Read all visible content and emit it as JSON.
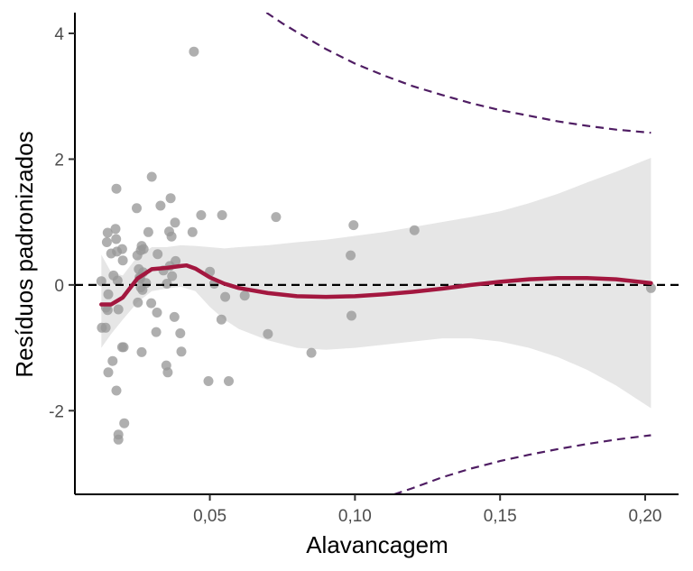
{
  "chart_data": {
    "type": "scatter",
    "xlabel": "Alavancagem",
    "ylabel": "Resíduos padronizados",
    "xlim": [
      0.0035,
      0.2115
    ],
    "ylim": [
      -3.33,
      4.33
    ],
    "xticks": [
      {
        "value": 0.05,
        "label": "0,05"
      },
      {
        "value": 0.1,
        "label": "0,10"
      },
      {
        "value": 0.15,
        "label": "0,15"
      },
      {
        "value": 0.2,
        "label": "0,20"
      }
    ],
    "yticks": [
      {
        "value": -2,
        "label": "-2"
      },
      {
        "value": 0,
        "label": "0"
      },
      {
        "value": 2,
        "label": "2"
      },
      {
        "value": 4,
        "label": "4"
      }
    ],
    "grid": false,
    "colors": {
      "points": "#999999",
      "smooth": "#a3173f",
      "band": "#e6e6e6",
      "reference": "#000000",
      "cook": "#4f1d63",
      "axis": "#000000"
    },
    "points": [
      {
        "x": 0.0126,
        "y": 0.06
      },
      {
        "x": 0.0128,
        "y": -0.68
      },
      {
        "x": 0.0141,
        "y": -0.68
      },
      {
        "x": 0.0142,
        "y": -0.36
      },
      {
        "x": 0.0145,
        "y": 0.68
      },
      {
        "x": 0.0148,
        "y": 0.83
      },
      {
        "x": 0.0148,
        "y": -0.4
      },
      {
        "x": 0.015,
        "y": -0.15
      },
      {
        "x": 0.015,
        "y": -1.39
      },
      {
        "x": 0.016,
        "y": 0.5
      },
      {
        "x": 0.0165,
        "y": -1.21
      },
      {
        "x": 0.0168,
        "y": 0.15
      },
      {
        "x": 0.0175,
        "y": 0.89
      },
      {
        "x": 0.0177,
        "y": 0.73
      },
      {
        "x": 0.0178,
        "y": 1.53
      },
      {
        "x": 0.0178,
        "y": -1.68
      },
      {
        "x": 0.018,
        "y": 0.53
      },
      {
        "x": 0.0182,
        "y": 0.07
      },
      {
        "x": 0.0185,
        "y": -0.39
      },
      {
        "x": 0.0185,
        "y": -2.38
      },
      {
        "x": 0.0185,
        "y": -2.46
      },
      {
        "x": 0.0198,
        "y": 0.57
      },
      {
        "x": 0.0198,
        "y": -0.99
      },
      {
        "x": 0.02,
        "y": 0.39
      },
      {
        "x": 0.0203,
        "y": -0.99
      },
      {
        "x": 0.0205,
        "y": -2.2
      },
      {
        "x": 0.0248,
        "y": 1.22
      },
      {
        "x": 0.025,
        "y": 0.47
      },
      {
        "x": 0.0252,
        "y": -0.28
      },
      {
        "x": 0.0255,
        "y": 0.25
      },
      {
        "x": 0.0258,
        "y": 0.12
      },
      {
        "x": 0.026,
        "y": 0.1
      },
      {
        "x": 0.0262,
        "y": -0.04
      },
      {
        "x": 0.0262,
        "y": 0.55
      },
      {
        "x": 0.0265,
        "y": 0.62
      },
      {
        "x": 0.0265,
        "y": -1.07
      },
      {
        "x": 0.0268,
        "y": -0.08
      },
      {
        "x": 0.027,
        "y": 0.2
      },
      {
        "x": 0.0272,
        "y": 0.57
      },
      {
        "x": 0.028,
        "y": 0.03
      },
      {
        "x": 0.0288,
        "y": 0.84
      },
      {
        "x": 0.0298,
        "y": -0.29
      },
      {
        "x": 0.03,
        "y": 1.72
      },
      {
        "x": 0.0315,
        "y": -0.75
      },
      {
        "x": 0.0318,
        "y": -0.44
      },
      {
        "x": 0.032,
        "y": 0.49
      },
      {
        "x": 0.033,
        "y": 1.26
      },
      {
        "x": 0.034,
        "y": 0.23
      },
      {
        "x": 0.035,
        "y": -1.28
      },
      {
        "x": 0.0352,
        "y": 0.02
      },
      {
        "x": 0.0355,
        "y": -1.39
      },
      {
        "x": 0.036,
        "y": 0.85
      },
      {
        "x": 0.0362,
        "y": 0.3
      },
      {
        "x": 0.0365,
        "y": 1.38
      },
      {
        "x": 0.0368,
        "y": 0.77
      },
      {
        "x": 0.037,
        "y": 0.14
      },
      {
        "x": 0.0378,
        "y": -0.51
      },
      {
        "x": 0.038,
        "y": 0.99
      },
      {
        "x": 0.0382,
        "y": 0.38
      },
      {
        "x": 0.0398,
        "y": -0.77
      },
      {
        "x": 0.0402,
        "y": -1.06
      },
      {
        "x": 0.044,
        "y": 0.84
      },
      {
        "x": 0.0445,
        "y": 3.71
      },
      {
        "x": 0.047,
        "y": 1.11
      },
      {
        "x": 0.0495,
        "y": -1.53
      },
      {
        "x": 0.05,
        "y": 0.21
      },
      {
        "x": 0.0515,
        "y": 0.02
      },
      {
        "x": 0.054,
        "y": -0.55
      },
      {
        "x": 0.0542,
        "y": 1.11
      },
      {
        "x": 0.0553,
        "y": -0.19
      },
      {
        "x": 0.0565,
        "y": -1.53
      },
      {
        "x": 0.062,
        "y": -0.17
      },
      {
        "x": 0.07,
        "y": -0.78
      },
      {
        "x": 0.0728,
        "y": 1.08
      },
      {
        "x": 0.085,
        "y": -1.08
      },
      {
        "x": 0.0985,
        "y": 0.47
      },
      {
        "x": 0.0988,
        "y": -0.49
      },
      {
        "x": 0.0995,
        "y": 0.95
      },
      {
        "x": 0.1205,
        "y": 0.87
      },
      {
        "x": 0.202,
        "y": -0.05
      }
    ],
    "smooth_line": {
      "x": [
        0.0126,
        0.016,
        0.02,
        0.025,
        0.03,
        0.035,
        0.04,
        0.042,
        0.045,
        0.05,
        0.055,
        0.06,
        0.07,
        0.08,
        0.09,
        0.1,
        0.11,
        0.12,
        0.13,
        0.14,
        0.15,
        0.16,
        0.17,
        0.18,
        0.19,
        0.202
      ],
      "y": [
        -0.31,
        -0.31,
        -0.2,
        0.1,
        0.25,
        0.27,
        0.3,
        0.31,
        0.26,
        0.12,
        0.02,
        -0.05,
        -0.13,
        -0.18,
        -0.19,
        -0.18,
        -0.15,
        -0.11,
        -0.06,
        0.0,
        0.05,
        0.09,
        0.11,
        0.11,
        0.09,
        0.03
      ]
    },
    "confidence_band": {
      "x": [
        0.0126,
        0.016,
        0.02,
        0.025,
        0.03,
        0.035,
        0.04,
        0.045,
        0.05,
        0.055,
        0.06,
        0.07,
        0.08,
        0.09,
        0.1,
        0.11,
        0.12,
        0.13,
        0.14,
        0.15,
        0.16,
        0.17,
        0.18,
        0.19,
        0.202
      ],
      "lower": [
        -1.0,
        -0.78,
        -0.55,
        -0.28,
        -0.1,
        -0.06,
        -0.03,
        -0.1,
        -0.35,
        -0.55,
        -0.7,
        -0.88,
        -1.0,
        -1.03,
        -1.0,
        -0.95,
        -0.9,
        -0.85,
        -0.85,
        -0.9,
        -1.0,
        -1.15,
        -1.35,
        -1.6,
        -1.96
      ],
      "upper": [
        0.48,
        0.2,
        0.15,
        0.45,
        0.6,
        0.6,
        0.63,
        0.62,
        0.6,
        0.58,
        0.6,
        0.63,
        0.68,
        0.72,
        0.78,
        0.84,
        0.92,
        1.0,
        1.08,
        1.17,
        1.3,
        1.45,
        1.63,
        1.8,
        2.02
      ]
    },
    "cook_upper": {
      "x": [
        0.0695,
        0.075,
        0.08,
        0.09,
        0.1,
        0.11,
        0.12,
        0.13,
        0.14,
        0.15,
        0.16,
        0.17,
        0.18,
        0.19,
        0.202
      ],
      "y": [
        4.33,
        4.16,
        4.02,
        3.75,
        3.52,
        3.33,
        3.16,
        3.02,
        2.89,
        2.78,
        2.69,
        2.6,
        2.53,
        2.47,
        2.42
      ]
    },
    "cook_lower": {
      "x": [
        0.1135,
        0.12,
        0.13,
        0.14,
        0.15,
        0.16,
        0.17,
        0.18,
        0.19,
        0.202
      ],
      "y": [
        -3.33,
        -3.23,
        -3.06,
        -2.92,
        -2.8,
        -2.7,
        -2.61,
        -2.53,
        -2.46,
        -2.39
      ]
    },
    "reference_line_y": 0
  }
}
